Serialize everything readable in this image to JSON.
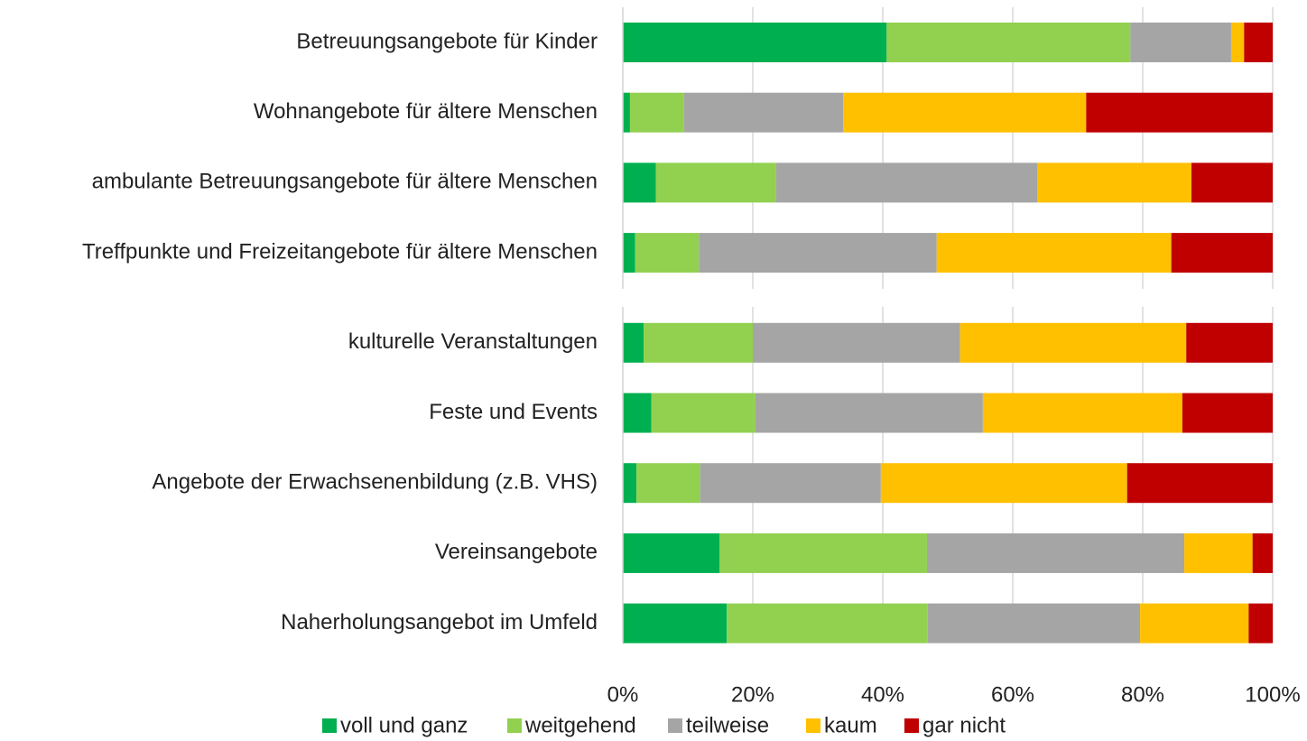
{
  "chart_data": {
    "type": "stacked_barh",
    "categories": [
      "Betreuungsangebote für Kinder",
      "Wohnangebote für ältere Menschen",
      "ambulante Betreuungsangebote für ältere Menschen",
      "Treffpunkte und Freizeitangebote für ältere Menschen",
      "kulturelle Veranstaltungen",
      "Feste und Events",
      "Angebote der Erwachsenenbildung (z.B. VHS)",
      "Vereinsangebote",
      "Naherholungsangebot im Umfeld"
    ],
    "series": [
      {
        "name": "voll und ganz",
        "color": "#00b050",
        "values": [
          40.6,
          1.1,
          5.1,
          1.9,
          3.2,
          4.4,
          2.1,
          14.9,
          16.0
        ]
      },
      {
        "name": "weitgehend",
        "color": "#92d050",
        "values": [
          37.5,
          8.3,
          18.5,
          9.8,
          16.8,
          16.0,
          9.8,
          31.9,
          30.9
        ]
      },
      {
        "name": "teilweise",
        "color": "#a5a5a5",
        "values": [
          15.5,
          24.5,
          40.2,
          36.6,
          31.9,
          35.0,
          27.8,
          39.6,
          32.7
        ]
      },
      {
        "name": "kaum",
        "color": "#ffc000",
        "values": [
          2.0,
          37.4,
          23.7,
          36.1,
          34.8,
          30.7,
          37.9,
          10.5,
          16.7
        ]
      },
      {
        "name": "gar nicht",
        "color": "#c00000",
        "values": [
          4.4,
          28.7,
          12.5,
          15.6,
          13.3,
          13.9,
          22.4,
          3.1,
          3.7
        ]
      }
    ],
    "xlim": [
      0,
      100
    ],
    "xticks": [
      {
        "value": 0,
        "label": "0%"
      },
      {
        "value": 20,
        "label": "20%"
      },
      {
        "value": 40,
        "label": "40%"
      },
      {
        "value": 60,
        "label": "60%"
      },
      {
        "value": 80,
        "label": "80%"
      },
      {
        "value": 100,
        "label": "100%"
      }
    ],
    "grid": true,
    "legend": "bottom"
  }
}
